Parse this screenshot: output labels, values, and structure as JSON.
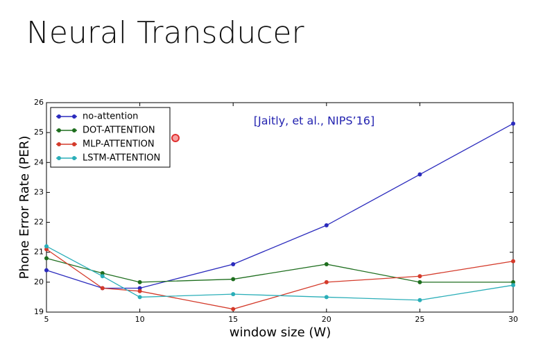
{
  "chart_data": {
    "type": "line",
    "title": "Neural Transducer",
    "annotation": "[Jaitly, et al., NIPS’16]",
    "x_label": "window size (W)",
    "y_label": "Phone Error Rate (PER)",
    "x": [
      5,
      8,
      10,
      15,
      20,
      25,
      30
    ],
    "series": [
      {
        "name": "no-attention",
        "color": "#2b2bbd",
        "values": [
          20.4,
          19.8,
          19.8,
          20.6,
          21.9,
          23.6,
          25.3
        ]
      },
      {
        "name": "DOT-ATTENTION",
        "color": "#1e6e1e",
        "values": [
          20.8,
          20.3,
          20.0,
          20.1,
          20.6,
          20.0,
          20.0
        ]
      },
      {
        "name": "MLP-ATTENTION",
        "color": "#d43a2a",
        "values": [
          21.1,
          19.8,
          19.7,
          19.1,
          20.0,
          20.2,
          20.7
        ]
      },
      {
        "name": "LSTM-ATTENTION",
        "color": "#2aaeb8",
        "values": [
          21.2,
          20.2,
          19.5,
          19.6,
          19.5,
          19.4,
          19.9
        ]
      }
    ],
    "xlim": [
      5,
      30
    ],
    "xticks": [
      5,
      10,
      15,
      20,
      25,
      30
    ],
    "ylim": [
      19,
      26
    ],
    "yticks": [
      19,
      20,
      21,
      22,
      23,
      24,
      25,
      26
    ],
    "legend": "upper left"
  }
}
